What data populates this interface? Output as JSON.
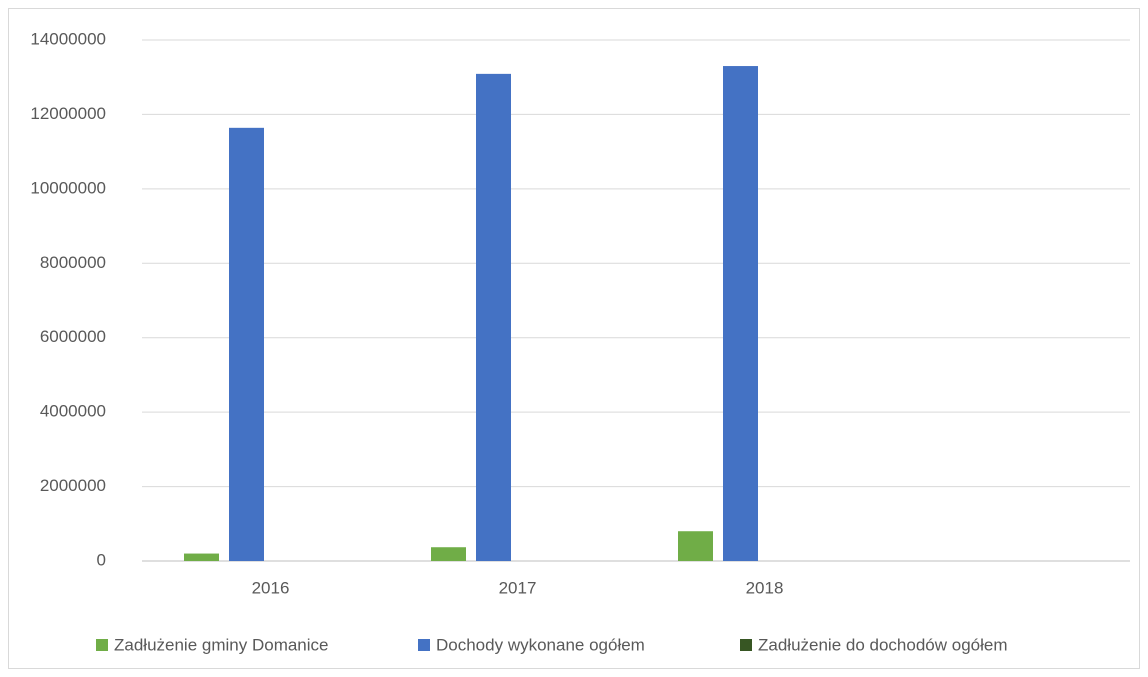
{
  "chart_data": {
    "type": "bar",
    "categories": [
      "2016",
      "2017",
      "2018",
      null
    ],
    "series": [
      {
        "name": "Zadłużenie gminy Domanice",
        "color": "#70ad47",
        "values": [
          200000,
          370000,
          800000,
          null
        ]
      },
      {
        "name": "Dochody wykonane ogółem",
        "color": "#4472c4",
        "values": [
          11640000,
          13090000,
          13300000,
          null
        ]
      },
      {
        "name": "Zadłużenie do dochodów ogółem",
        "color": "#375623",
        "values": [
          0.017,
          0.028,
          0.06,
          null
        ]
      }
    ],
    "ylim": [
      0,
      14000000
    ],
    "yticks": [
      0,
      2000000,
      4000000,
      6000000,
      8000000,
      10000000,
      12000000,
      14000000
    ],
    "grid": true,
    "legend": "bottom"
  }
}
